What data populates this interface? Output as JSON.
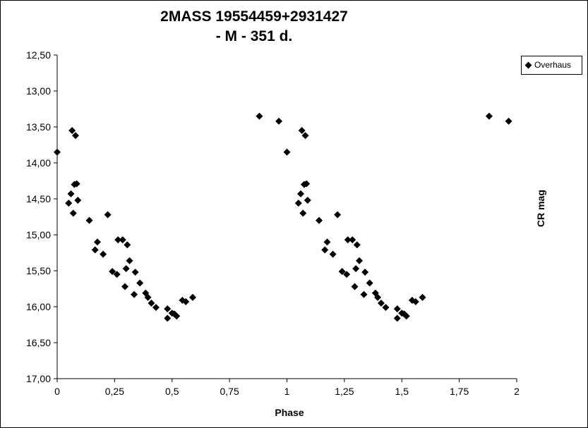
{
  "chart_data": {
    "type": "scatter",
    "title_line1": "2MASS 19554459+2931427",
    "title_line2": "- M - 351 d.",
    "xlabel": "Phase",
    "ylabel": "CR mag",
    "xlim": [
      0,
      2
    ],
    "ylim": [
      12.5,
      17.0
    ],
    "y_inverted": true,
    "x_ticks": [
      "0",
      "0,25",
      "0,5",
      "0,75",
      "1",
      "1,25",
      "1,5",
      "1,75",
      "2"
    ],
    "y_ticks": [
      "12,50",
      "13,00",
      "13,50",
      "14,00",
      "14,50",
      "15,00",
      "15,50",
      "16,00",
      "16,50",
      "17,00"
    ],
    "grid": false,
    "legend_position": "top-right",
    "series": [
      {
        "name": "Overhaus",
        "color": "#000000",
        "marker": "diamond",
        "points": [
          [
            0.0,
            13.85
          ],
          [
            0.05,
            14.56
          ],
          [
            0.06,
            14.43
          ],
          [
            0.065,
            13.55
          ],
          [
            0.07,
            14.7
          ],
          [
            0.075,
            14.3
          ],
          [
            0.08,
            13.62
          ],
          [
            0.085,
            14.29
          ],
          [
            0.09,
            14.52
          ],
          [
            0.14,
            14.8
          ],
          [
            0.165,
            15.21
          ],
          [
            0.175,
            15.1
          ],
          [
            0.2,
            15.27
          ],
          [
            0.22,
            14.72
          ],
          [
            0.24,
            15.51
          ],
          [
            0.26,
            15.55
          ],
          [
            0.265,
            15.07
          ],
          [
            0.285,
            15.07
          ],
          [
            0.295,
            15.72
          ],
          [
            0.3,
            15.47
          ],
          [
            0.305,
            15.14
          ],
          [
            0.315,
            15.36
          ],
          [
            0.335,
            15.83
          ],
          [
            0.34,
            15.52
          ],
          [
            0.36,
            15.67
          ],
          [
            0.385,
            15.81
          ],
          [
            0.395,
            15.87
          ],
          [
            0.41,
            15.95
          ],
          [
            0.43,
            16.01
          ],
          [
            0.48,
            16.03
          ],
          [
            0.48,
            16.16
          ],
          [
            0.5,
            16.09
          ],
          [
            0.51,
            16.1
          ],
          [
            0.52,
            16.13
          ],
          [
            0.545,
            15.91
          ],
          [
            0.56,
            15.93
          ],
          [
            0.59,
            15.87
          ],
          [
            0.88,
            13.35
          ],
          [
            0.965,
            13.42
          ],
          [
            1.0,
            13.85
          ],
          [
            1.05,
            14.56
          ],
          [
            1.06,
            14.43
          ],
          [
            1.065,
            13.55
          ],
          [
            1.07,
            14.7
          ],
          [
            1.075,
            14.3
          ],
          [
            1.08,
            13.62
          ],
          [
            1.085,
            14.29
          ],
          [
            1.09,
            14.52
          ],
          [
            1.14,
            14.8
          ],
          [
            1.165,
            15.21
          ],
          [
            1.175,
            15.1
          ],
          [
            1.2,
            15.27
          ],
          [
            1.22,
            14.72
          ],
          [
            1.24,
            15.51
          ],
          [
            1.26,
            15.55
          ],
          [
            1.265,
            15.07
          ],
          [
            1.285,
            15.07
          ],
          [
            1.295,
            15.72
          ],
          [
            1.3,
            15.47
          ],
          [
            1.305,
            15.14
          ],
          [
            1.315,
            15.36
          ],
          [
            1.335,
            15.83
          ],
          [
            1.34,
            15.52
          ],
          [
            1.36,
            15.67
          ],
          [
            1.385,
            15.81
          ],
          [
            1.395,
            15.87
          ],
          [
            1.41,
            15.95
          ],
          [
            1.43,
            16.01
          ],
          [
            1.48,
            16.03
          ],
          [
            1.48,
            16.16
          ],
          [
            1.5,
            16.09
          ],
          [
            1.51,
            16.1
          ],
          [
            1.52,
            16.13
          ],
          [
            1.545,
            15.91
          ],
          [
            1.56,
            15.93
          ],
          [
            1.59,
            15.87
          ],
          [
            1.88,
            13.35
          ],
          [
            1.965,
            13.42
          ]
        ]
      }
    ]
  }
}
